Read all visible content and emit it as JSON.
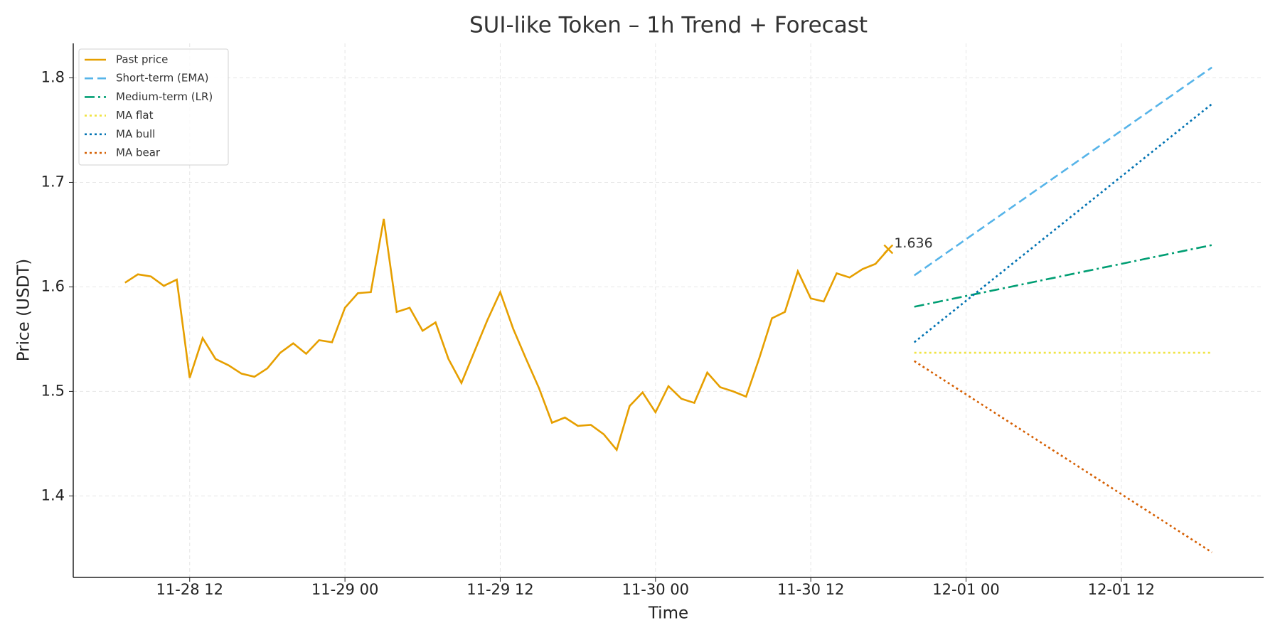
{
  "chart_data": {
    "type": "line",
    "title": "SUI-like Token – 1h Trend + Forecast",
    "x_label": "Time",
    "y_label": "Price (USDT)",
    "xlim": [
      "11-28 03",
      "12-01 23"
    ],
    "xticks": [
      "11-28 12",
      "11-29 00",
      "11-29 12",
      "11-30 00",
      "11-30 12",
      "12-01 00",
      "12-01 12"
    ],
    "ylim": [
      1.322,
      1.833
    ],
    "yticks": [
      1.4,
      1.5,
      1.6,
      1.7,
      1.8
    ],
    "grid": true,
    "legend": "upper left",
    "annotation": "1.636",
    "series": [
      {
        "name": "Past price",
        "color": "#E69F00",
        "style": "solid",
        "x": [
          "11-28 07",
          "11-28 08",
          "11-28 09",
          "11-28 10",
          "11-28 11",
          "11-28 12",
          "11-28 13",
          "11-28 14",
          "11-28 15",
          "11-28 16",
          "11-28 17",
          "11-28 18",
          "11-28 19",
          "11-28 20",
          "11-28 21",
          "11-28 22",
          "11-28 23",
          "11-29 00",
          "11-29 01",
          "11-29 02",
          "11-29 03",
          "11-29 04",
          "11-29 05",
          "11-29 06",
          "11-29 07",
          "11-29 08",
          "11-29 09",
          "11-29 10",
          "11-29 11",
          "11-29 12",
          "11-29 13",
          "11-29 14",
          "11-29 15",
          "11-29 16",
          "11-29 17",
          "11-29 18",
          "11-29 19",
          "11-29 20",
          "11-29 21",
          "11-29 22",
          "11-29 23",
          "11-30 00",
          "11-30 01",
          "11-30 02",
          "11-30 03",
          "11-30 04",
          "11-30 05",
          "11-30 06",
          "11-30 07",
          "11-30 08",
          "11-30 09",
          "11-30 10",
          "11-30 11",
          "11-30 12",
          "11-30 13",
          "11-30 14",
          "11-30 15",
          "11-30 16",
          "11-30 17",
          "11-30 18"
        ],
        "values": [
          1.604,
          1.612,
          1.61,
          1.601,
          1.607,
          1.513,
          1.551,
          1.531,
          1.525,
          1.517,
          1.514,
          1.522,
          1.537,
          1.546,
          1.536,
          1.549,
          1.547,
          1.58,
          1.594,
          1.595,
          1.665,
          1.576,
          1.58,
          1.558,
          1.566,
          1.531,
          1.508,
          1.538,
          1.568,
          1.595,
          1.56,
          1.531,
          1.503,
          1.47,
          1.475,
          1.467,
          1.468,
          1.459,
          1.444,
          1.486,
          1.499,
          1.48,
          1.505,
          1.493,
          1.489,
          1.518,
          1.504,
          1.5,
          1.495,
          1.531,
          1.57,
          1.576,
          1.615,
          1.589,
          1.586,
          1.613,
          1.609,
          1.617,
          1.622,
          1.636
        ]
      },
      {
        "name": "Short-term (EMA)",
        "color": "#56B4E9",
        "style": "dashed",
        "x": [
          "11-30 20",
          "12-01 19"
        ],
        "values": [
          1.611,
          1.81
        ]
      },
      {
        "name": "Medium-term (LR)",
        "color": "#009E73",
        "style": "dashdot",
        "x": [
          "11-30 20",
          "12-01 19"
        ],
        "values": [
          1.581,
          1.64
        ]
      },
      {
        "name": "MA flat",
        "color": "#F0E442",
        "style": "dotted",
        "x": [
          "11-30 20",
          "12-01 19"
        ],
        "values": [
          1.537,
          1.537
        ]
      },
      {
        "name": "MA bull",
        "color": "#0072B2",
        "style": "dotted",
        "x": [
          "11-30 20",
          "12-01 19"
        ],
        "values": [
          1.547,
          1.775
        ]
      },
      {
        "name": "MA bear",
        "color": "#D55E00",
        "style": "dotted",
        "x": [
          "11-30 20",
          "12-01 19"
        ],
        "values": [
          1.529,
          1.346
        ]
      }
    ]
  }
}
